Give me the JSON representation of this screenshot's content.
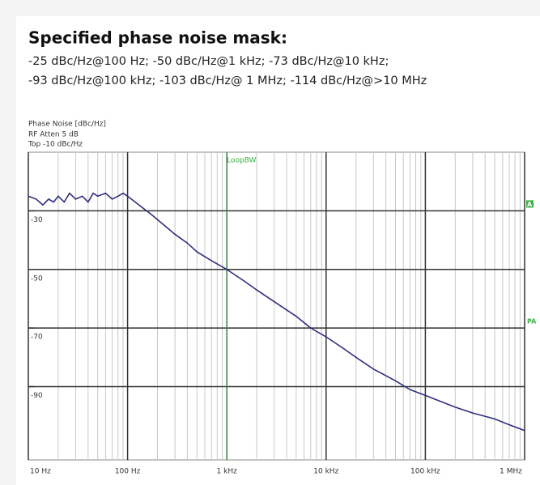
{
  "chart_data": {
    "type": "line",
    "title": "Specified phase noise mask:",
    "subtitle": [
      "-25 dBc/Hz@100 Hz; -50 dBc/Hz@1 kHz; -73 dBc/Hz@10 kHz;",
      "-93 dBc/Hz@100 kHz; -103 dBc/Hz@ 1 MHz; -114 dBc/Hz@>10 MHz"
    ],
    "header": [
      "Phase Noise [dBc/Hz]",
      "RF Atten      5 dB",
      "Top  -10 dBc/Hz"
    ],
    "marker": {
      "label": "LoopBW",
      "x": 1000,
      "color": "#3cb043"
    },
    "right_markers": [
      {
        "label": "A",
        "y": -30
      },
      {
        "label": "PA",
        "y": -70
      }
    ],
    "x": [
      10,
      12,
      14,
      16,
      18,
      20,
      23,
      26,
      30,
      35,
      40,
      45,
      50,
      60,
      70,
      80,
      90,
      100,
      130,
      170,
      200,
      300,
      400,
      500,
      700,
      1000,
      1500,
      2000,
      3000,
      5000,
      7000,
      10000,
      15000,
      20000,
      30000,
      50000,
      70000,
      100000,
      200000,
      300000,
      500000,
      700000,
      1000000
    ],
    "values": [
      -25,
      -26,
      -28,
      -26,
      -27,
      -25,
      -27,
      -24,
      -26,
      -25,
      -27,
      -24,
      -25,
      -24,
      -26,
      -25,
      -24,
      -25,
      -28,
      -31,
      -33,
      -38,
      -41,
      -44,
      -47,
      -50,
      -54,
      -57,
      -61,
      -66,
      -70,
      -73,
      -77,
      -80,
      -84,
      -88,
      -91,
      -93,
      -97,
      -99,
      -101,
      -103,
      -105
    ],
    "color": "#2e2e7e",
    "xscale": "log",
    "xlim": [
      10,
      1000000
    ],
    "ylim": [
      -115,
      -10
    ],
    "xticks": [
      {
        "value": 10,
        "label": "10 Hz"
      },
      {
        "value": 100,
        "label": "100 Hz"
      },
      {
        "value": 1000,
        "label": "1 kHz"
      },
      {
        "value": 10000,
        "label": "10 kHz"
      },
      {
        "value": 100000,
        "label": "100 kHz"
      },
      {
        "value": 1000000,
        "label": "1 MHz"
      }
    ],
    "xminorticks": [
      20,
      30,
      40,
      50,
      60,
      70,
      80,
      90,
      200,
      300,
      400,
      500,
      600,
      700,
      800,
      900,
      2000,
      3000,
      4000,
      5000,
      6000,
      7000,
      8000,
      9000,
      20000,
      30000,
      40000,
      50000,
      60000,
      70000,
      80000,
      90000,
      200000,
      300000,
      400000,
      500000,
      600000,
      700000,
      800000,
      900000
    ],
    "yticks": [
      -30,
      -50,
      -70,
      -90
    ],
    "grid": true
  }
}
